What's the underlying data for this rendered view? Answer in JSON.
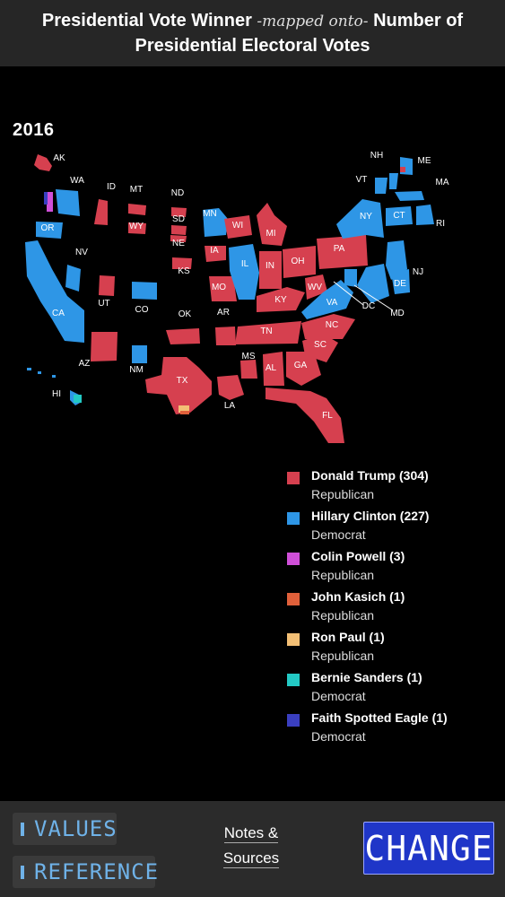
{
  "header": {
    "title_part1": "Presidential Vote Winner",
    "title_mid": "-mapped onto-",
    "title_part2": "Number of",
    "title_line2": "Presidential Electoral Votes"
  },
  "year": "2016",
  "colors": {
    "trump": "#d6404f",
    "clinton": "#2e96e6",
    "powell": "#cf4fd8",
    "kasich": "#e0603a",
    "paul": "#f3bf75",
    "sanders": "#23c9c4",
    "eagle": "#3a3fc0"
  },
  "legend": [
    {
      "name": "Donald Trump (304)",
      "party": "Republican",
      "color": "#d6404f"
    },
    {
      "name": "Hillary Clinton (227)",
      "party": "Democrat",
      "color": "#2e96e6"
    },
    {
      "name": "Colin Powell (3)",
      "party": "Republican",
      "color": "#cf4fd8"
    },
    {
      "name": "John Kasich (1)",
      "party": "Republican",
      "color": "#e0603a"
    },
    {
      "name": "Ron Paul (1)",
      "party": "Republican",
      "color": "#f3bf75"
    },
    {
      "name": "Bernie Sanders (1)",
      "party": "Democrat",
      "color": "#23c9c4"
    },
    {
      "name": "Faith Spotted Eagle (1)",
      "party": "Democrat",
      "color": "#3a3fc0"
    }
  ],
  "states": [
    {
      "abbr": "AK",
      "winner": "trump"
    },
    {
      "abbr": "WA",
      "winner": "clinton"
    },
    {
      "abbr": "ID",
      "winner": "trump"
    },
    {
      "abbr": "MT",
      "winner": "trump"
    },
    {
      "abbr": "ND",
      "winner": "trump"
    },
    {
      "abbr": "SD",
      "winner": "trump"
    },
    {
      "abbr": "WY",
      "winner": "trump"
    },
    {
      "abbr": "NE",
      "winner": "trump"
    },
    {
      "abbr": "OR",
      "winner": "clinton"
    },
    {
      "abbr": "NV",
      "winner": "clinton"
    },
    {
      "abbr": "CA",
      "winner": "clinton"
    },
    {
      "abbr": "UT",
      "winner": "trump"
    },
    {
      "abbr": "CO",
      "winner": "clinton"
    },
    {
      "abbr": "AZ",
      "winner": "trump"
    },
    {
      "abbr": "NM",
      "winner": "clinton"
    },
    {
      "abbr": "HI",
      "winner": "clinton"
    },
    {
      "abbr": "KS",
      "winner": "trump"
    },
    {
      "abbr": "OK",
      "winner": "trump"
    },
    {
      "abbr": "TX",
      "winner": "trump"
    },
    {
      "abbr": "MN",
      "winner": "clinton"
    },
    {
      "abbr": "IA",
      "winner": "trump"
    },
    {
      "abbr": "MO",
      "winner": "trump"
    },
    {
      "abbr": "AR",
      "winner": "trump"
    },
    {
      "abbr": "LA",
      "winner": "trump"
    },
    {
      "abbr": "WI",
      "winner": "trump"
    },
    {
      "abbr": "IL",
      "winner": "clinton"
    },
    {
      "abbr": "MI",
      "winner": "trump"
    },
    {
      "abbr": "IN",
      "winner": "trump"
    },
    {
      "abbr": "OH",
      "winner": "trump"
    },
    {
      "abbr": "KY",
      "winner": "trump"
    },
    {
      "abbr": "TN",
      "winner": "trump"
    },
    {
      "abbr": "MS",
      "winner": "trump"
    },
    {
      "abbr": "AL",
      "winner": "trump"
    },
    {
      "abbr": "GA",
      "winner": "trump"
    },
    {
      "abbr": "FL",
      "winner": "trump"
    },
    {
      "abbr": "SC",
      "winner": "trump"
    },
    {
      "abbr": "NC",
      "winner": "trump"
    },
    {
      "abbr": "WV",
      "winner": "trump"
    },
    {
      "abbr": "VA",
      "winner": "clinton"
    },
    {
      "abbr": "PA",
      "winner": "trump"
    },
    {
      "abbr": "NY",
      "winner": "clinton"
    },
    {
      "abbr": "VT",
      "winner": "clinton"
    },
    {
      "abbr": "NH",
      "winner": "clinton"
    },
    {
      "abbr": "ME",
      "winner": "clinton"
    },
    {
      "abbr": "MA",
      "winner": "clinton"
    },
    {
      "abbr": "CT",
      "winner": "clinton"
    },
    {
      "abbr": "RI",
      "winner": "clinton"
    },
    {
      "abbr": "NJ",
      "winner": "clinton"
    },
    {
      "abbr": "DE",
      "winner": "clinton"
    },
    {
      "abbr": "MD",
      "winner": "clinton"
    },
    {
      "abbr": "DC",
      "winner": "clinton"
    }
  ],
  "footer": {
    "values_label": "VALUES",
    "reference_label": "REFERENCE",
    "notes_line1": "Notes &",
    "notes_line2": "Sources",
    "change_label": "CHANGE"
  }
}
